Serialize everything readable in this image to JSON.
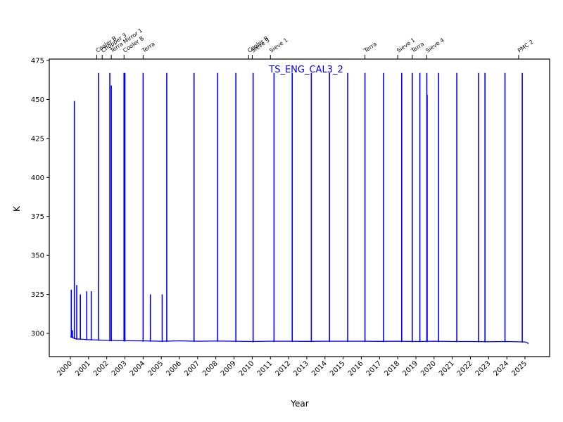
{
  "chart_data": {
    "type": "line",
    "title": "TS_ENG_CAL3_2",
    "xlabel": "Year",
    "ylabel": "K",
    "xlim": [
      1998.8,
      2026.3
    ],
    "ylim": [
      285,
      475
    ],
    "grid": false,
    "line_color": "#0000ff",
    "x_ticks": [
      "2000",
      "2001",
      "2002",
      "2003",
      "2004",
      "2005",
      "2006",
      "2007",
      "2008",
      "2009",
      "2010",
      "2011",
      "2012",
      "2013",
      "2014",
      "2015",
      "2016",
      "2017",
      "2018",
      "2019",
      "2020",
      "2021",
      "2022",
      "2023",
      "2024",
      "2025"
    ],
    "y_ticks": [
      300,
      325,
      350,
      375,
      400,
      425,
      450,
      475
    ],
    "baseline": {
      "x": [
        2000.0,
        2000.3,
        2001.0,
        2002.0,
        2003.0,
        2004.0,
        2005.0,
        2006.0,
        2007.0,
        2008.0,
        2009.0,
        2010.0,
        2011.0,
        2012.0,
        2013.0,
        2014.0,
        2015.0,
        2016.0,
        2017.0,
        2018.0,
        2019.0,
        2020.0,
        2021.0,
        2022.0,
        2023.0,
        2024.0,
        2025.0,
        2025.2
      ],
      "values": [
        298,
        296.5,
        296,
        295.5,
        295.3,
        295.2,
        295,
        295.2,
        295,
        295.1,
        295,
        294.8,
        295,
        295,
        294.9,
        295,
        295,
        295,
        294.9,
        295,
        294.8,
        295,
        294.8,
        294.8,
        294.7,
        294.8,
        294.5,
        293.5
      ]
    },
    "spikes": [
      {
        "x": 2000.05,
        "peak": 328
      },
      {
        "x": 2000.12,
        "peak": 302
      },
      {
        "x": 2000.22,
        "peak": 449
      },
      {
        "x": 2000.35,
        "peak": 331
      },
      {
        "x": 2000.55,
        "peak": 325
      },
      {
        "x": 2000.9,
        "peak": 327
      },
      {
        "x": 2001.15,
        "peak": 327
      },
      {
        "x": 2001.55,
        "peak": 467
      },
      {
        "x": 2002.17,
        "peak": 467
      },
      {
        "x": 2002.25,
        "peak": 459
      },
      {
        "x": 2002.95,
        "peak": 467
      },
      {
        "x": 2003.0,
        "peak": 467
      },
      {
        "x": 2004.0,
        "peak": 467
      },
      {
        "x": 2004.4,
        "peak": 325
      },
      {
        "x": 2005.05,
        "peak": 325
      },
      {
        "x": 2005.3,
        "peak": 467
      },
      {
        "x": 2006.8,
        "peak": 467
      },
      {
        "x": 2008.1,
        "peak": 467
      },
      {
        "x": 2009.1,
        "peak": 467
      },
      {
        "x": 2010.05,
        "peak": 467
      },
      {
        "x": 2011.2,
        "peak": 467
      },
      {
        "x": 2012.2,
        "peak": 467
      },
      {
        "x": 2013.25,
        "peak": 467
      },
      {
        "x": 2014.25,
        "peak": 467
      },
      {
        "x": 2015.25,
        "peak": 467
      },
      {
        "x": 2016.2,
        "peak": 467
      },
      {
        "x": 2017.22,
        "peak": 467
      },
      {
        "x": 2018.22,
        "peak": 467
      },
      {
        "x": 2018.8,
        "peak": 467
      },
      {
        "x": 2019.22,
        "peak": 467
      },
      {
        "x": 2019.6,
        "peak": 467
      },
      {
        "x": 2019.62,
        "peak": 453
      },
      {
        "x": 2020.25,
        "peak": 467
      },
      {
        "x": 2021.25,
        "peak": 467
      },
      {
        "x": 2022.45,
        "peak": 467
      },
      {
        "x": 2022.8,
        "peak": 467
      },
      {
        "x": 2023.9,
        "peak": 467
      },
      {
        "x": 2024.85,
        "peak": 467
      }
    ],
    "annotations": [
      {
        "x": 2001.45,
        "label": "Cooler B"
      },
      {
        "x": 2001.75,
        "label": "Chopper 3"
      },
      {
        "x": 2002.25,
        "label": "Terra Mirror 1"
      },
      {
        "x": 2002.95,
        "label": "Cooler B"
      },
      {
        "x": 2004.0,
        "label": "Terra"
      },
      {
        "x": 2009.8,
        "label": "Cooler B"
      },
      {
        "x": 2010.0,
        "label": "Sieve 3"
      },
      {
        "x": 2011.0,
        "label": "Sieve 1"
      },
      {
        "x": 2016.2,
        "label": "Terra"
      },
      {
        "x": 2018.0,
        "label": "Sieve 1"
      },
      {
        "x": 2018.8,
        "label": "Terra"
      },
      {
        "x": 2019.6,
        "label": "Sieve 4"
      },
      {
        "x": 2024.65,
        "label": "PMC 2"
      }
    ]
  }
}
